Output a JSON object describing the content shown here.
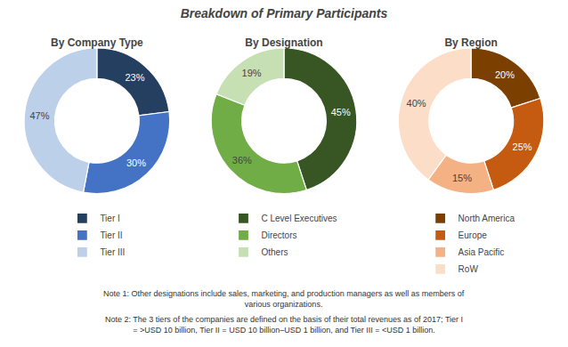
{
  "title": "Breakdown of Primary Participants",
  "annotations": [
    "Note 1: Other designations include sales, marketing, and production managers as well as members of\nvarious organizations.",
    "Note 2: The 3 tiers of the companies are defined on the basis of their total revenues as of 2017; Tier I\n= >USD 10 billion, Tier II = USD 10 billion–USD 1 billion, and Tier III = <USD 1 billion."
  ],
  "chart_data": [
    {
      "type": "donut",
      "subtitle": "By Company Type",
      "categories": [
        "Tier I",
        "Tier II",
        "Tier III"
      ],
      "values": [
        23,
        30,
        47
      ],
      "value_labels": [
        "23%",
        "30%",
        "47%"
      ],
      "data_labels": true,
      "colors": [
        "#243F60",
        "#4472C4",
        "#BDD0E9"
      ],
      "legend": "bottom"
    },
    {
      "type": "donut",
      "subtitle": "By Designation",
      "categories": [
        "C Level Executives",
        "Directors",
        "Others"
      ],
      "values": [
        45,
        36,
        19
      ],
      "value_labels": [
        "45%",
        "36%",
        "19%"
      ],
      "data_labels": true,
      "colors": [
        "#375623",
        "#70AD47",
        "#C6E0B4"
      ],
      "legend": "bottom"
    },
    {
      "type": "donut",
      "subtitle": "By Region",
      "categories": [
        "North America",
        "Europe",
        "Asia Pacific",
        "RoW"
      ],
      "values": [
        20,
        25,
        15,
        40
      ],
      "value_labels": [
        "20%",
        "25%",
        "15%",
        "40%"
      ],
      "data_labels": true,
      "colors": [
        "#7B3F00",
        "#C55A11",
        "#F4B183",
        "#FCDDC7"
      ],
      "legend": "bottom"
    }
  ]
}
